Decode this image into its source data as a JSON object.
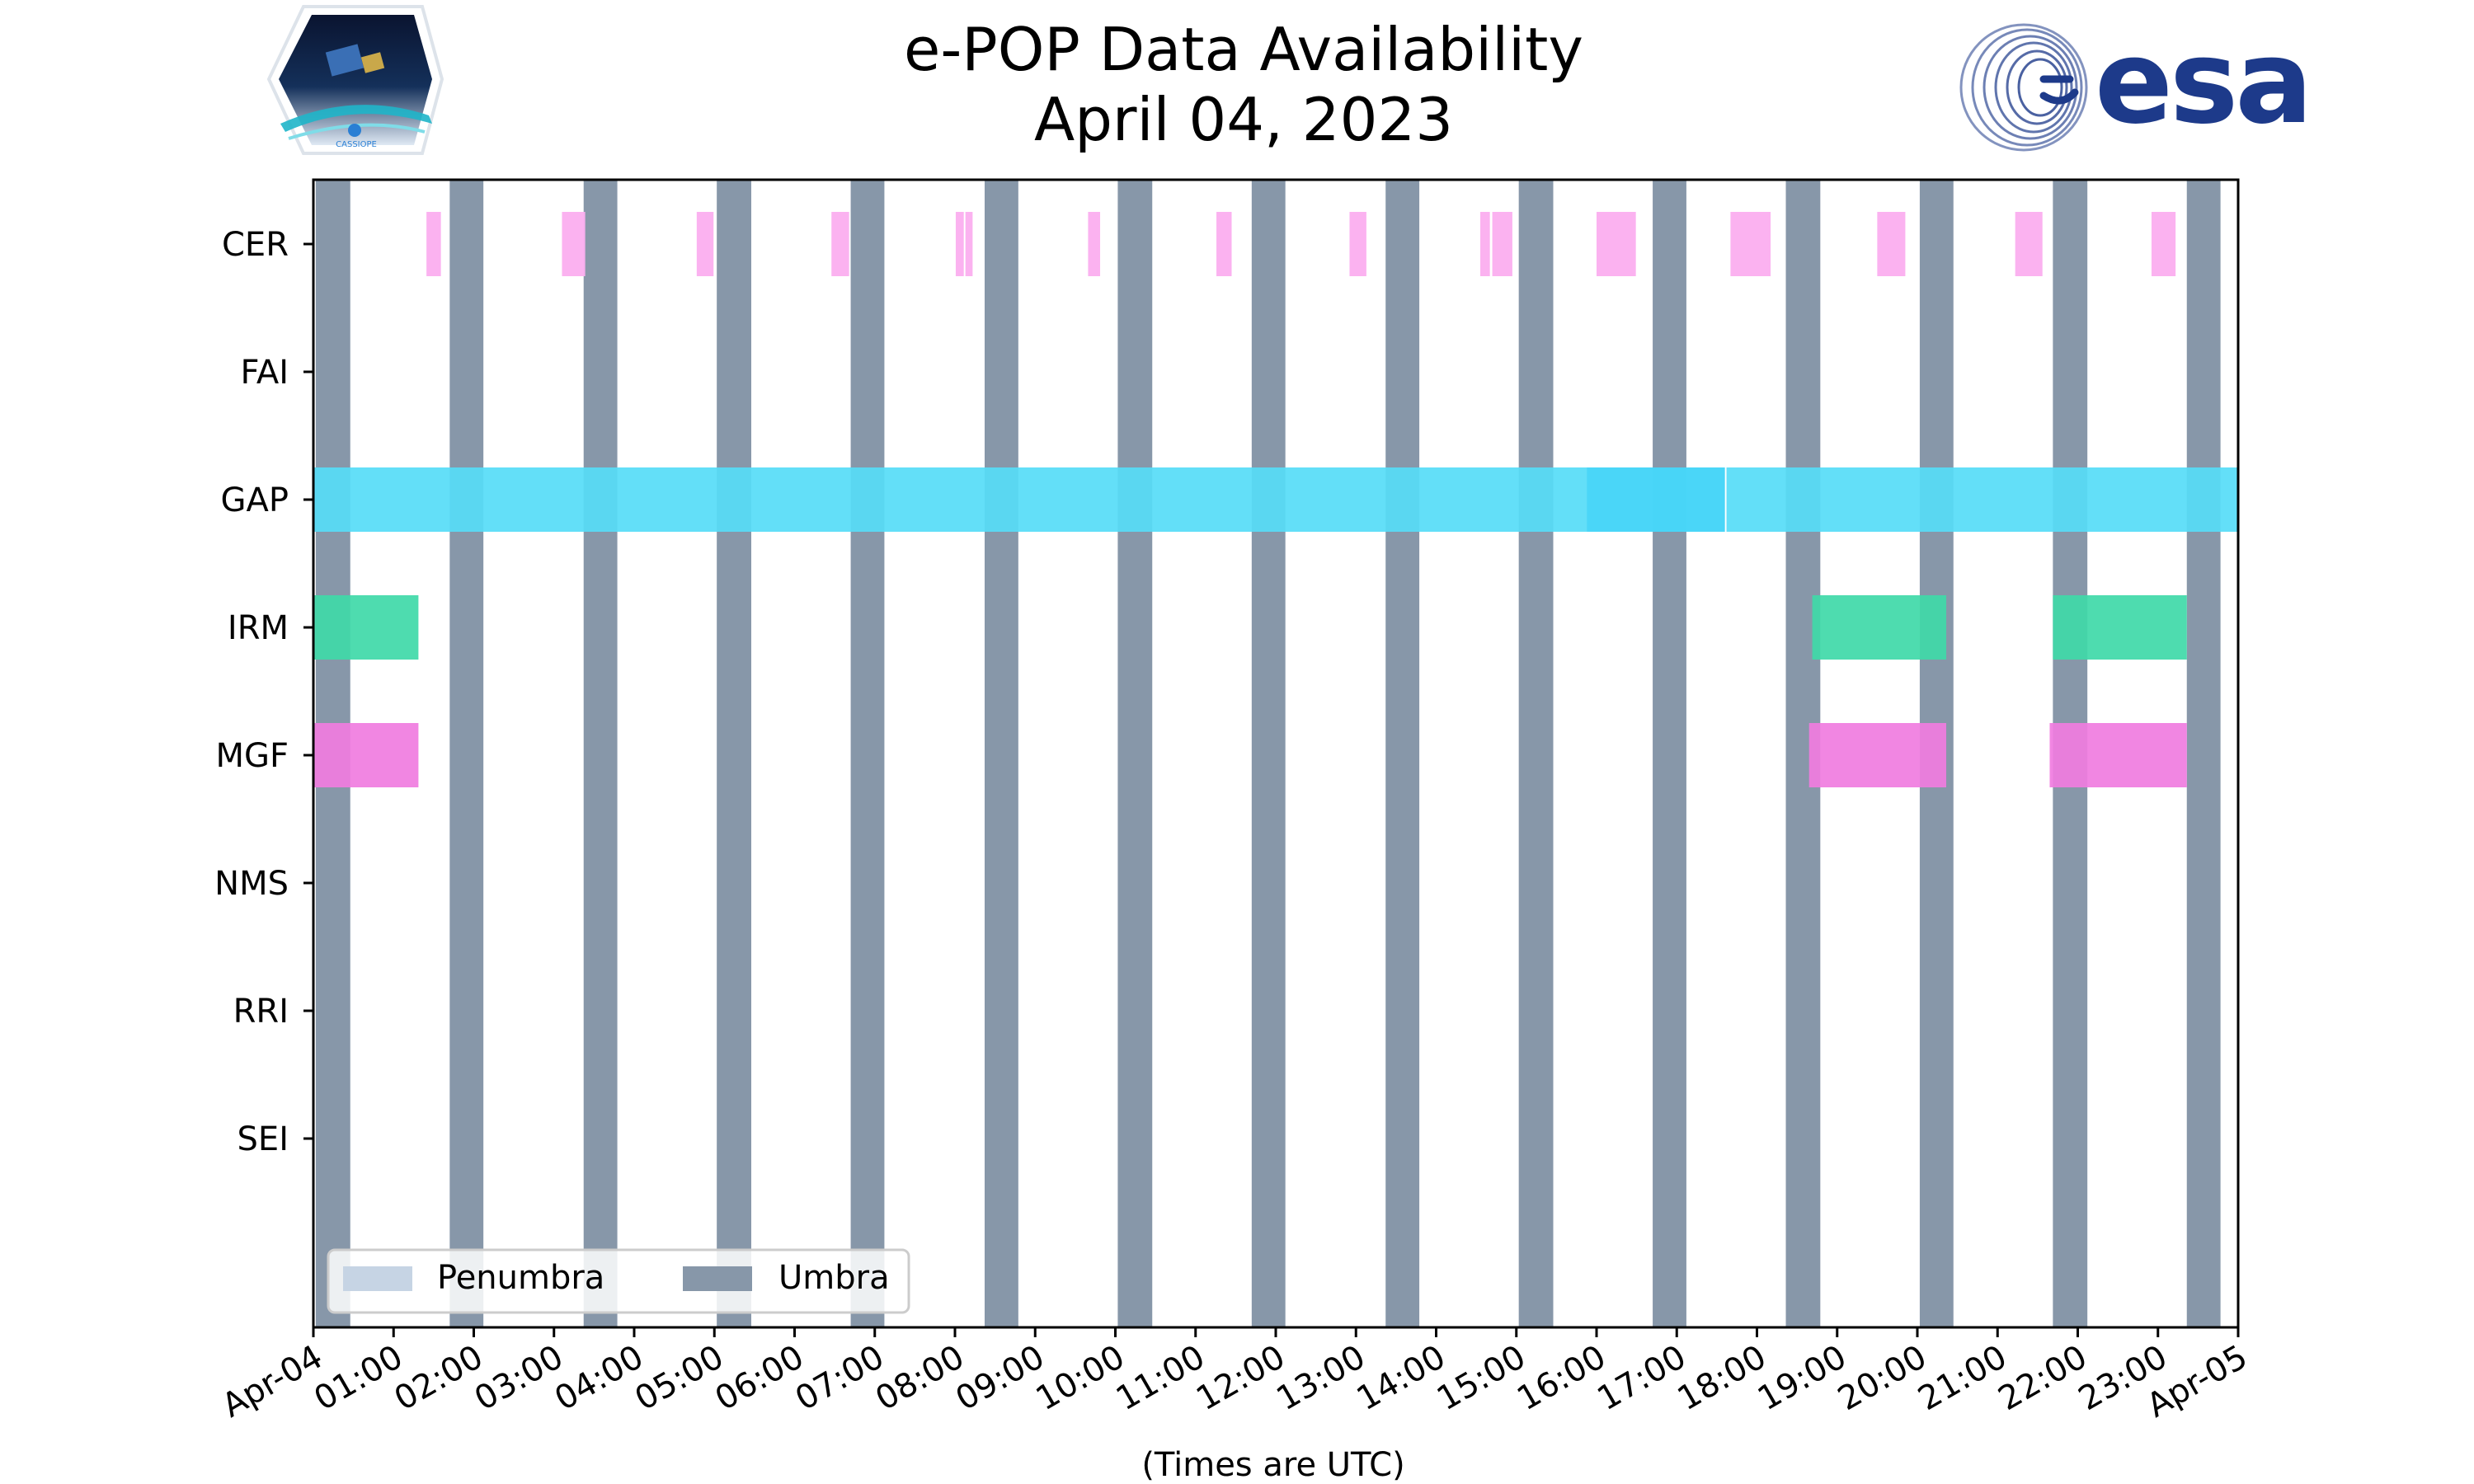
{
  "chart_data": {
    "type": "timeline",
    "title": "e-POP Data Availability",
    "subtitle": "April 04, 2023",
    "xlabel": "(Times are UTC)",
    "ylabel": "",
    "x_range_hours": [
      0,
      24
    ],
    "x_tick_labels": [
      "Apr-04",
      "01:00",
      "02:00",
      "03:00",
      "04:00",
      "05:00",
      "06:00",
      "07:00",
      "08:00",
      "09:00",
      "10:00",
      "11:00",
      "12:00",
      "13:00",
      "14:00",
      "15:00",
      "16:00",
      "17:00",
      "18:00",
      "19:00",
      "20:00",
      "21:00",
      "22:00",
      "23:00",
      "Apr-05"
    ],
    "instruments": [
      "CER",
      "FAI",
      "GAP",
      "IRM",
      "MGF",
      "NMS",
      "RRI",
      "SEI"
    ],
    "legend": {
      "placement": "lower-left",
      "entries": [
        "Penumbra",
        "Umbra"
      ]
    },
    "colors": {
      "penumbra": "#c6d4e4",
      "umbra": "#8797a9",
      "CER": "#fbaeef",
      "GAP": "#56dcf7",
      "GAP_dark": "#45d5f8",
      "IRM": "#3fd9a8",
      "MGF": "#f07ce0",
      "frame": "#000000",
      "text": "#000000"
    },
    "umbra_intervals_hours": [
      [
        0.03,
        0.46
      ],
      [
        1.7,
        2.12
      ],
      [
        3.37,
        3.79
      ],
      [
        5.03,
        5.46
      ],
      [
        6.7,
        7.12
      ],
      [
        8.37,
        8.79
      ],
      [
        10.03,
        10.46
      ],
      [
        11.7,
        12.12
      ],
      [
        13.37,
        13.79
      ],
      [
        15.03,
        15.46
      ],
      [
        16.7,
        17.12
      ],
      [
        18.36,
        18.79
      ],
      [
        20.03,
        20.45
      ],
      [
        21.69,
        22.12
      ],
      [
        23.36,
        23.78
      ]
    ],
    "series": [
      {
        "name": "CER",
        "intervals_hours": [
          [
            1.41,
            1.59
          ],
          [
            3.1,
            3.39
          ],
          [
            4.78,
            4.99
          ],
          [
            6.46,
            6.68
          ],
          [
            8.01,
            8.11
          ],
          [
            8.13,
            8.22
          ],
          [
            9.66,
            9.81
          ],
          [
            11.26,
            11.45
          ],
          [
            12.92,
            13.13
          ],
          [
            14.55,
            14.67
          ],
          [
            14.7,
            14.95
          ],
          [
            16.0,
            16.49
          ],
          [
            17.67,
            18.17
          ],
          [
            19.5,
            19.85
          ],
          [
            21.22,
            21.56
          ],
          [
            22.92,
            23.22
          ]
        ]
      },
      {
        "name": "FAI",
        "intervals_hours": []
      },
      {
        "name": "GAP",
        "intervals_hours": [
          [
            0,
            17.6
          ],
          [
            17.62,
            24
          ]
        ],
        "darker_interval_hours": [
          15.88,
          17.6
        ]
      },
      {
        "name": "IRM",
        "intervals_hours": [
          [
            0,
            1.31
          ],
          [
            18.69,
            20.36
          ],
          [
            21.69,
            23.36
          ]
        ]
      },
      {
        "name": "MGF",
        "intervals_hours": [
          [
            0,
            1.31
          ],
          [
            18.65,
            20.36
          ],
          [
            21.65,
            23.36
          ]
        ]
      },
      {
        "name": "NMS",
        "intervals_hours": []
      },
      {
        "name": "RRI",
        "intervals_hours": []
      },
      {
        "name": "SEI",
        "intervals_hours": []
      }
    ]
  },
  "logos": {
    "left": {
      "name": "cassiope-logo",
      "text": "CASSIOPE"
    },
    "right": {
      "name": "esa-logo",
      "text": "esa"
    }
  }
}
